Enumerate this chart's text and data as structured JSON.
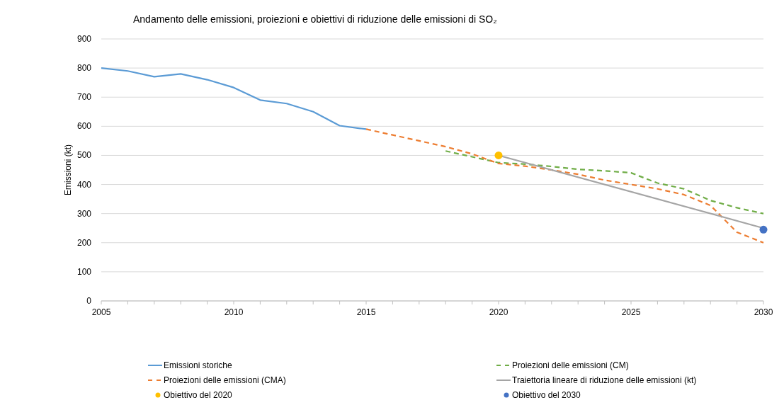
{
  "chart_data": {
    "type": "line",
    "title": "Andamento delle emissioni, proiezioni e obiettivi di riduzione delle emissioni di SO₂",
    "ylabel": "Emissioni (kt)",
    "xlim": [
      2005,
      2030
    ],
    "xticks": [
      2005,
      {
        "value": 2006,
        "label": null
      },
      {
        "value": 2007,
        "label": null
      },
      {
        "value": 2008,
        "label": null
      },
      {
        "value": 2009,
        "label": null
      },
      2010,
      {
        "value": 2011,
        "label": null
      },
      {
        "value": 2012,
        "label": null
      },
      {
        "value": 2013,
        "label": null
      },
      {
        "value": 2014,
        "label": null
      },
      2015,
      {
        "value": 2016,
        "label": null
      },
      {
        "value": 2017,
        "label": null
      },
      {
        "value": 2018,
        "label": null
      },
      {
        "value": 2019,
        "label": null
      },
      2020,
      {
        "value": 2021,
        "label": null
      },
      {
        "value": 2022,
        "label": null
      },
      {
        "value": 2023,
        "label": null
      },
      {
        "value": 2024,
        "label": null
      },
      2025,
      {
        "value": 2026,
        "label": null
      },
      {
        "value": 2027,
        "label": null
      },
      {
        "value": 2028,
        "label": null
      },
      {
        "value": 2029,
        "label": null
      },
      2030
    ],
    "ylim": [
      0,
      900
    ],
    "yticks": [
      0,
      100,
      200,
      300,
      400,
      500,
      600,
      700,
      800,
      900
    ],
    "grid": "y",
    "legend": "bottom",
    "series": [
      {
        "name": "Emissioni storiche",
        "color": "#5b9bd5",
        "line_style": "solid",
        "x": [
          2005,
          2006,
          2007,
          2008,
          2009,
          2010,
          2011,
          2012,
          2013,
          2014,
          2015
        ],
        "values": [
          800,
          790,
          770,
          780,
          760,
          733,
          690,
          678,
          650,
          602,
          590
        ]
      },
      {
        "name": "Proiezioni delle emissioni (CM)",
        "color": "#70ad47",
        "line_style": "dashed",
        "x": [
          2018,
          2019,
          2020,
          2021,
          2022,
          2023,
          2024,
          2025,
          2026,
          2027,
          2028,
          2029,
          2030
        ],
        "values": [
          515,
          495,
          475,
          470,
          462,
          452,
          447,
          440,
          405,
          385,
          345,
          320,
          300
        ]
      },
      {
        "name": "Proiezioni delle emissioni (CMA)",
        "color": "#ed7d31",
        "line_style": "dashed",
        "x": [
          2015,
          2016,
          2017,
          2018,
          2019,
          2020,
          2021,
          2022,
          2023,
          2024,
          2025,
          2026,
          2027,
          2028,
          2029,
          2030
        ],
        "values": [
          590,
          570,
          550,
          530,
          505,
          472,
          463,
          450,
          435,
          415,
          400,
          385,
          365,
          328,
          236,
          200
        ]
      },
      {
        "name": "Traiettoria lineare di riduzione delle emissioni (kt)",
        "color": "#a5a5a5",
        "line_style": "solid",
        "x": [
          2020,
          2030
        ],
        "values": [
          500,
          250
        ]
      },
      {
        "name": "Obiettivo del 2020",
        "type": "scatter",
        "marker": "circle",
        "color": "#ffc000",
        "x": [
          2020
        ],
        "values": [
          500
        ]
      },
      {
        "name": "Obiettivo del 2030",
        "type": "scatter",
        "marker": "circle",
        "color": "#4472c4",
        "x": [
          2030
        ],
        "values": [
          245
        ]
      }
    ]
  }
}
